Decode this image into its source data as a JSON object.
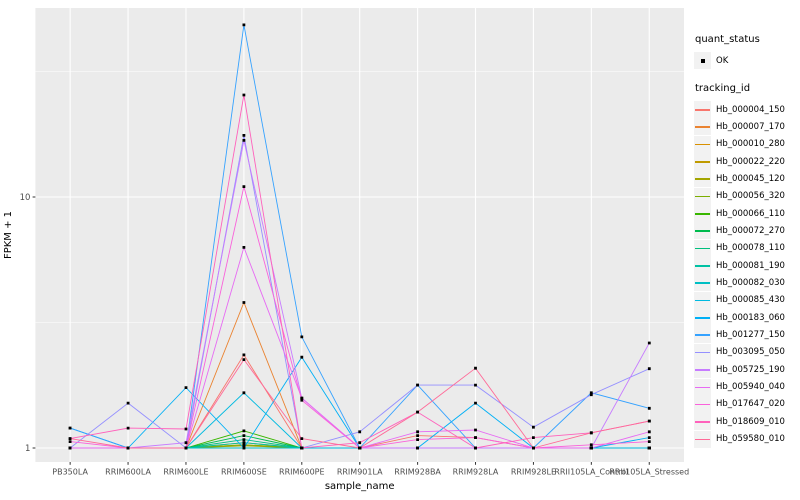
{
  "legend": {
    "quant_status_title": "quant_status",
    "quant_ok_label": "OK",
    "tracking_id_title": "tracking_id"
  },
  "chart_data": {
    "type": "line",
    "title": "",
    "xlabel": "sample_name",
    "ylabel": "FPKM + 1",
    "y_scale": "log10",
    "y_major_ticks": [
      1,
      10
    ],
    "y_minor_ticks": [
      3.162,
      31.62
    ],
    "ylim": [
      0.88,
      57
    ],
    "grid": true,
    "legend_position": "right",
    "point_marker": "small-black-square",
    "categories": [
      "PB350LA",
      "RRIM600LA",
      "RRIM600LE",
      "RRIM600SE",
      "RRIM600PE",
      "RRIM901LA",
      "RRIM928BA",
      "RRIM928LA",
      "RRIM928LE",
      "RRII105LA_Control",
      "RRII105LA_Stressed"
    ],
    "series": [
      {
        "name": "Hb_000004_150",
        "color": "#F8766D",
        "values": [
          1.0,
          1.0,
          1.0,
          2.35,
          1.0,
          1.0,
          1.12,
          1.1,
          1.0,
          1.0,
          1.0
        ]
      },
      {
        "name": "Hb_000007_170",
        "color": "#EA8331",
        "values": [
          1.0,
          1.0,
          1.0,
          3.8,
          1.0,
          1.0,
          1.0,
          1.0,
          1.0,
          1.0,
          1.0
        ]
      },
      {
        "name": "Hb_000010_280",
        "color": "#D89000",
        "values": [
          1.0,
          1.0,
          1.0,
          1.05,
          1.0,
          1.0,
          1.0,
          1.0,
          1.0,
          1.0,
          1.0
        ]
      },
      {
        "name": "Hb_000022_220",
        "color": "#C09B00",
        "values": [
          1.0,
          1.0,
          1.0,
          1.03,
          1.0,
          1.0,
          1.0,
          1.0,
          1.0,
          1.0,
          1.0
        ]
      },
      {
        "name": "Hb_000045_120",
        "color": "#A3A500",
        "values": [
          1.0,
          1.0,
          1.0,
          1.02,
          1.0,
          1.0,
          1.0,
          1.0,
          1.0,
          1.0,
          1.0
        ]
      },
      {
        "name": "Hb_000056_320",
        "color": "#7CAE00",
        "values": [
          1.0,
          1.0,
          1.0,
          1.03,
          1.0,
          1.0,
          1.0,
          1.0,
          1.0,
          1.0,
          1.0
        ]
      },
      {
        "name": "Hb_000066_110",
        "color": "#39B600",
        "values": [
          1.0,
          1.0,
          1.0,
          1.17,
          1.0,
          1.0,
          1.0,
          1.0,
          1.0,
          1.0,
          1.0
        ]
      },
      {
        "name": "Hb_000072_270",
        "color": "#00BB4E",
        "values": [
          1.0,
          1.0,
          1.0,
          1.12,
          1.0,
          1.0,
          1.0,
          1.0,
          1.0,
          1.0,
          1.0
        ]
      },
      {
        "name": "Hb_000078_110",
        "color": "#00BF7D",
        "values": [
          1.0,
          1.0,
          1.0,
          1.08,
          1.0,
          1.0,
          1.0,
          1.0,
          1.0,
          1.0,
          1.0
        ]
      },
      {
        "name": "Hb_000081_190",
        "color": "#00C1A3",
        "values": [
          1.0,
          1.0,
          1.0,
          1.05,
          1.0,
          1.0,
          1.0,
          1.0,
          1.0,
          1.0,
          1.0
        ]
      },
      {
        "name": "Hb_000082_030",
        "color": "#00BFC4",
        "values": [
          1.0,
          1.0,
          1.0,
          1.0,
          1.0,
          1.0,
          1.0,
          1.0,
          1.0,
          1.0,
          1.0
        ]
      },
      {
        "name": "Hb_000085_430",
        "color": "#00BAE0",
        "values": [
          1.0,
          1.0,
          1.0,
          1.66,
          1.0,
          1.0,
          1.0,
          1.0,
          1.0,
          1.0,
          1.0
        ]
      },
      {
        "name": "Hb_000183_060",
        "color": "#00B0F6",
        "values": [
          1.2,
          1.0,
          1.74,
          1.0,
          2.3,
          1.0,
          1.0,
          1.51,
          1.0,
          1.0,
          1.1
        ]
      },
      {
        "name": "Hb_001277_150",
        "color": "#35A2FF",
        "values": [
          1.2,
          1.0,
          1.0,
          48.5,
          2.77,
          1.0,
          1.78,
          1.0,
          1.0,
          1.66,
          1.44
        ]
      },
      {
        "name": "Hb_003095_050",
        "color": "#9590FF",
        "values": [
          1.0,
          1.51,
          1.0,
          17.6,
          1.0,
          1.16,
          1.78,
          1.78,
          1.21,
          1.63,
          2.07
        ]
      },
      {
        "name": "Hb_005725_190",
        "color": "#C77CFF",
        "values": [
          1.0,
          1.0,
          1.05,
          16.8,
          1.58,
          1.0,
          1.0,
          1.0,
          1.0,
          1.0,
          2.62
        ]
      },
      {
        "name": "Hb_005940_040",
        "color": "#E76BF3",
        "values": [
          1.0,
          1.0,
          1.0,
          6.3,
          1.58,
          1.0,
          1.16,
          1.18,
          1.0,
          1.0,
          1.16
        ]
      },
      {
        "name": "Hb_017647_020",
        "color": "#FA62DB",
        "values": [
          1.06,
          1.0,
          1.0,
          11.0,
          1.55,
          1.0,
          1.08,
          1.1,
          1.0,
          1.03,
          1.06
        ]
      },
      {
        "name": "Hb_018609_010",
        "color": "#FF62BC",
        "values": [
          1.09,
          1.2,
          1.19,
          25.5,
          1.0,
          1.05,
          1.39,
          1.0,
          1.1,
          1.15,
          1.28
        ]
      },
      {
        "name": "Hb_059580_010",
        "color": "#FF6A98",
        "values": [
          1.09,
          1.0,
          1.0,
          2.25,
          1.09,
          1.0,
          1.39,
          2.08,
          1.0,
          1.15,
          1.28
        ]
      }
    ],
    "style": {
      "panel_bg": "#EBEBEB",
      "grid_color": "#FFFFFF",
      "tick_text_color": "#4D4D4D",
      "axis_title_color": "#000000",
      "tick_mark_color": "#333333",
      "legend_key_bg": "#F2F2F2",
      "point_color": "#000000"
    }
  }
}
